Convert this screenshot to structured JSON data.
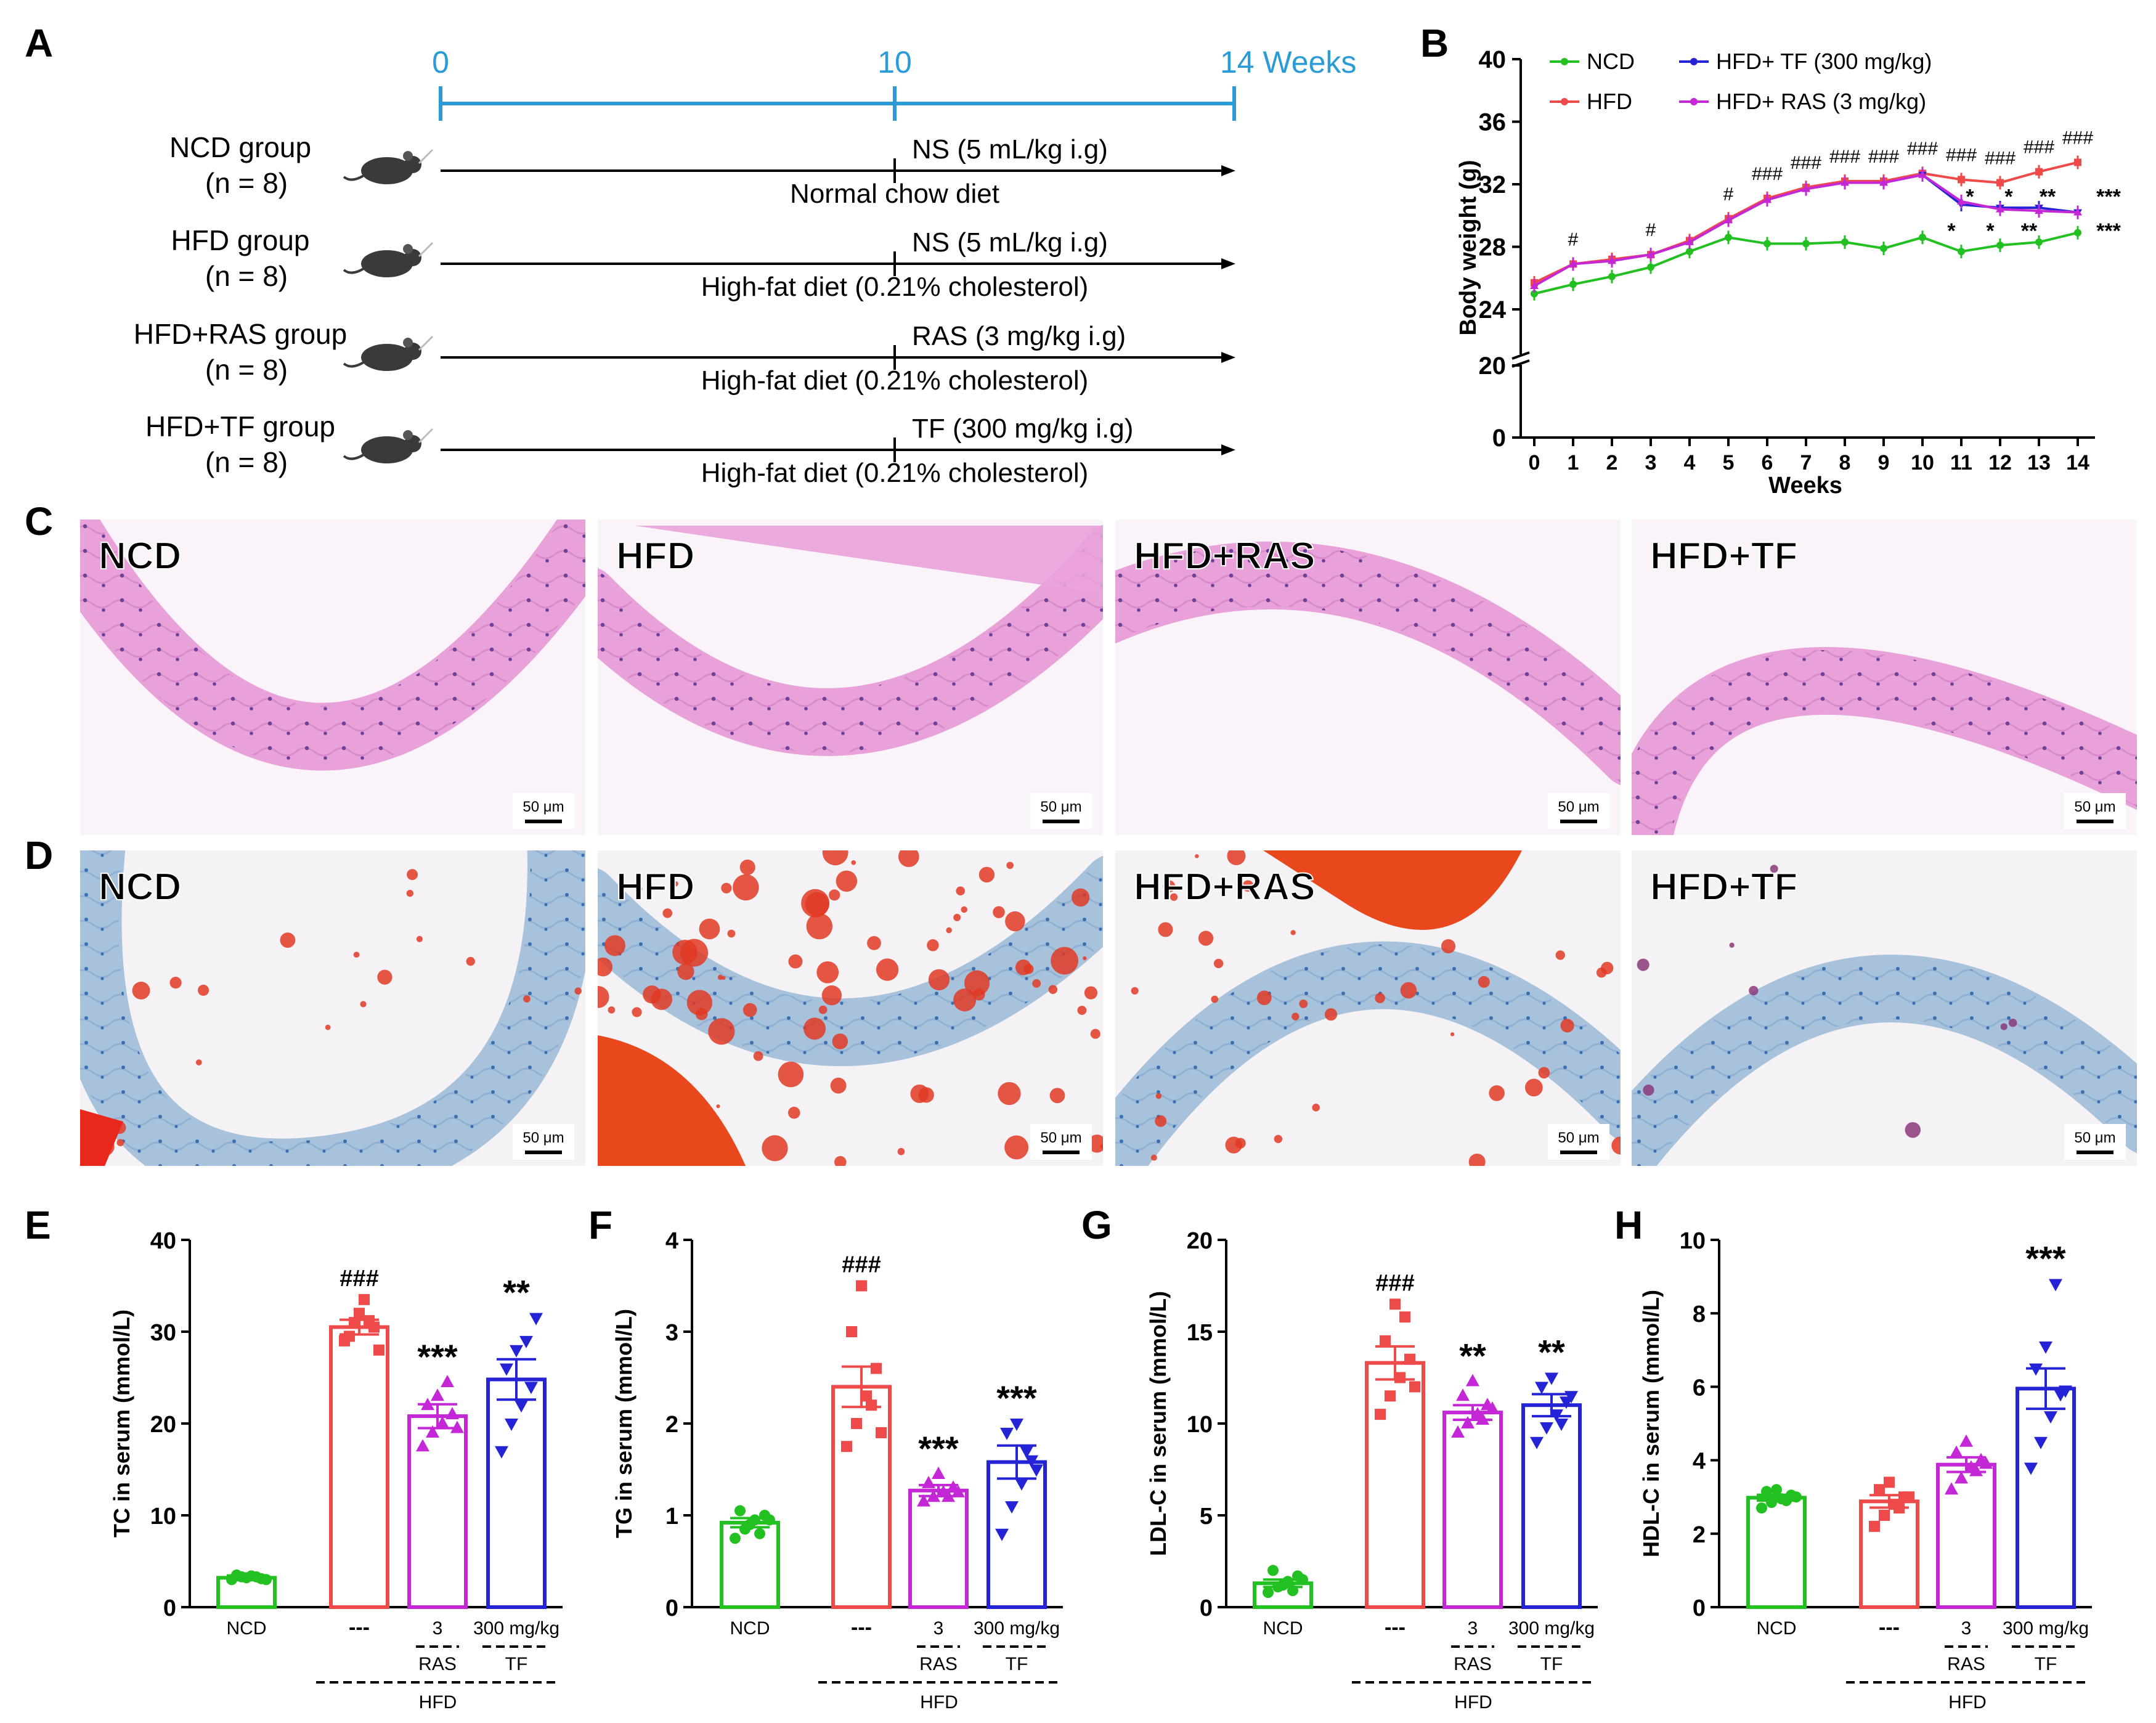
{
  "panels": {
    "A": "A",
    "B": "B",
    "C": "C",
    "D": "D",
    "E": "E",
    "F": "F",
    "G": "G",
    "H": "H"
  },
  "timeline": {
    "ticks": [
      "0",
      "10",
      "14 Weeks"
    ],
    "groups": [
      {
        "name": "NCD group",
        "n": "(n = 8)",
        "above": "NS (5 mL/kg i.g)",
        "below": "Normal chow diet"
      },
      {
        "name": "HFD group",
        "n": "(n = 8)",
        "above": "NS (5 mL/kg i.g)",
        "below": "High-fat diet (0.21% cholesterol)"
      },
      {
        "name": "HFD+RAS group",
        "n": "(n = 8)",
        "above": "RAS (3 mg/kg i.g)",
        "below": "High-fat diet (0.21% cholesterol)"
      },
      {
        "name": "HFD+TF group",
        "n": "(n = 8)",
        "above": "TF (300 mg/kg i.g)",
        "below": "High-fat diet (0.21% cholesterol)"
      }
    ],
    "colors": {
      "axis": "#2a9bd6"
    }
  },
  "histology": {
    "labels": [
      "NCD",
      "HFD",
      "HFD+RAS",
      "HFD+TF"
    ],
    "scale": "50 μm",
    "he_colors": {
      "bg": "#fbf3fa",
      "wall": "#e9a2d9",
      "nuclei": "#6a3f9a"
    },
    "oro_colors": {
      "bg": "#f4f2f4",
      "wall": "#a8c2dc",
      "nuclei": "#3a6fb0",
      "lipid": "#e03a24"
    }
  },
  "chart_data": [
    {
      "type": "line",
      "title": "",
      "xlabel": "Weeks",
      "ylabel": "Body weight (g)",
      "x": [
        0,
        1,
        2,
        3,
        4,
        5,
        6,
        7,
        8,
        9,
        10,
        11,
        12,
        13,
        14
      ],
      "yticks": [
        "0",
        "20",
        "24",
        "28",
        "32",
        "36",
        "40"
      ],
      "ylim": [
        0,
        40
      ],
      "axis_break": [
        20,
        22
      ],
      "series": [
        {
          "name": "NCD",
          "color": "#22c020",
          "x": [
            0,
            1,
            2,
            3,
            4,
            5,
            6,
            7,
            8,
            9,
            10,
            11,
            12,
            13,
            14
          ],
          "values": [
            25.0,
            25.6,
            26.1,
            26.7,
            27.7,
            28.6,
            28.2,
            28.2,
            28.3,
            27.9,
            28.6,
            27.7,
            28.1,
            28.3,
            28.9
          ]
        },
        {
          "name": "HFD",
          "color": "#ef4a4a",
          "x": [
            0,
            1,
            2,
            3,
            4,
            5,
            6,
            7,
            8,
            9,
            10,
            11,
            12,
            13,
            14
          ],
          "values": [
            25.7,
            26.9,
            27.2,
            27.5,
            28.4,
            29.8,
            31.1,
            31.8,
            32.2,
            32.2,
            32.7,
            32.3,
            32.1,
            32.8,
            33.4
          ]
        },
        {
          "name": "HFD+ TF (300 mg/kg)",
          "color": "#2424d6",
          "x": [
            10,
            11,
            12,
            13,
            14
          ],
          "values": [
            32.6,
            30.7,
            30.5,
            30.5,
            30.2
          ]
        },
        {
          "name": "HFD+ RAS (3 mg/kg)",
          "color": "#c428d6",
          "x": [
            0,
            1,
            2,
            3,
            4,
            5,
            6,
            7,
            8,
            9,
            10,
            11,
            12,
            13,
            14
          ],
          "values": [
            25.5,
            26.9,
            27.1,
            27.5,
            28.3,
            29.7,
            31.0,
            31.7,
            32.1,
            32.1,
            32.6,
            30.9,
            30.4,
            30.3,
            30.2
          ]
        }
      ],
      "annotations": {
        "hash": [
          {
            "x": 1,
            "text": "#"
          },
          {
            "x": 3,
            "text": "#"
          },
          {
            "x": 5,
            "text": "#"
          },
          {
            "x": 6,
            "text": "###"
          },
          {
            "x": 7,
            "text": "###"
          },
          {
            "x": 8,
            "text": "###"
          },
          {
            "x": 9,
            "text": "###"
          },
          {
            "x": 10,
            "text": "###"
          },
          {
            "x": 11,
            "text": "###"
          },
          {
            "x": 12,
            "text": "###"
          },
          {
            "x": 13,
            "text": "###"
          },
          {
            "x": 14,
            "text": "###"
          }
        ],
        "star_upper": [
          {
            "x": 11,
            "text": "*"
          },
          {
            "x": 12,
            "text": "*"
          },
          {
            "x": 13,
            "text": "**"
          },
          {
            "x": 14,
            "text": "***"
          }
        ],
        "star_lower": [
          {
            "x": 11,
            "text": "*"
          },
          {
            "x": 12,
            "text": "*"
          },
          {
            "x": 13,
            "text": "**"
          },
          {
            "x": 14,
            "text": "***"
          }
        ]
      }
    },
    {
      "type": "bar",
      "panel": "E",
      "ylabel": "TC in serum (mmol/L)",
      "ylim": [
        0,
        40
      ],
      "yticks": [
        "0",
        "10",
        "20",
        "30",
        "40"
      ],
      "categories": [
        "NCD",
        "---",
        "3",
        "300 mg/kg"
      ],
      "colors": [
        "#22c020",
        "#ef4a4a",
        "#c428d6",
        "#2424d6"
      ],
      "markers": [
        "circle",
        "square",
        "triangle",
        "invtriangle"
      ],
      "values": [
        3.2,
        30.5,
        20.8,
        24.8
      ],
      "sem": [
        0.25,
        0.8,
        1.3,
        2.2
      ],
      "points": [
        [
          3.0,
          3.3,
          3.4,
          3.1,
          3.5,
          3.2,
          3.3,
          3.0
        ],
        [
          29.0,
          31.0,
          33.5,
          30.5,
          29.5,
          32.0,
          31.2,
          28.0
        ],
        [
          17.5,
          19.0,
          20.0,
          21.0,
          22.0,
          23.0,
          24.5,
          19.5
        ],
        [
          17.0,
          20.0,
          22.0,
          24.0,
          26.0,
          28.0,
          29.0,
          31.5
        ]
      ],
      "sig": [
        "",
        "###",
        "***",
        "**"
      ],
      "group_labels": [
        "RAS",
        "TF",
        "HFD"
      ]
    },
    {
      "type": "bar",
      "panel": "F",
      "ylabel": "TG in serum (mmol/L)",
      "ylim": [
        0,
        4
      ],
      "yticks": [
        "0",
        "1",
        "2",
        "3",
        "4"
      ],
      "categories": [
        "NCD",
        "---",
        "3",
        "300 mg/kg"
      ],
      "colors": [
        "#22c020",
        "#ef4a4a",
        "#c428d6",
        "#2424d6"
      ],
      "markers": [
        "circle",
        "square",
        "triangle",
        "invtriangle"
      ],
      "values": [
        0.92,
        2.4,
        1.27,
        1.58
      ],
      "sem": [
        0.05,
        0.22,
        0.06,
        0.18
      ],
      "points": [
        [
          0.75,
          0.85,
          0.95,
          1.0,
          1.05,
          0.9,
          0.8,
          0.95
        ],
        [
          1.75,
          2.0,
          2.3,
          2.6,
          3.0,
          3.5,
          2.2,
          1.9
        ],
        [
          1.15,
          1.2,
          1.25,
          1.3,
          1.35,
          1.45,
          1.2,
          1.25
        ],
        [
          0.8,
          1.1,
          1.35,
          1.6,
          1.9,
          2.0,
          1.7,
          1.5
        ]
      ],
      "sig": [
        "",
        "###",
        "***",
        "***"
      ],
      "group_labels": [
        "RAS",
        "TF",
        "HFD"
      ]
    },
    {
      "type": "bar",
      "panel": "G",
      "ylabel": "LDL-C in serum (mmol/L)",
      "ylim": [
        0,
        20
      ],
      "yticks": [
        "0",
        "5",
        "10",
        "15",
        "20"
      ],
      "categories": [
        "NCD",
        "---",
        "3",
        "300 mg/kg"
      ],
      "colors": [
        "#22c020",
        "#ef4a4a",
        "#c428d6",
        "#2424d6"
      ],
      "markers": [
        "circle",
        "square",
        "triangle",
        "invtriangle"
      ],
      "values": [
        1.3,
        13.3,
        10.6,
        11.0
      ],
      "sem": [
        0.2,
        0.9,
        0.4,
        0.6
      ],
      "points": [
        [
          0.8,
          1.1,
          1.4,
          1.7,
          2.0,
          1.2,
          0.9,
          1.5
        ],
        [
          10.5,
          11.5,
          12.5,
          13.5,
          14.5,
          16.5,
          15.8,
          12.0
        ],
        [
          9.5,
          10.0,
          10.5,
          11.0,
          11.5,
          12.3,
          10.2,
          10.8
        ],
        [
          9.0,
          9.8,
          10.5,
          11.2,
          12.0,
          12.5,
          10.0,
          11.5
        ]
      ],
      "sig": [
        "",
        "###",
        "**",
        "**"
      ],
      "group_labels": [
        "RAS",
        "TF",
        "HFD"
      ]
    },
    {
      "type": "bar",
      "panel": "H",
      "ylabel": "HDL-C in serum (mmol/L)",
      "ylim": [
        0,
        10
      ],
      "yticks": [
        "0",
        "2",
        "4",
        "6",
        "8",
        "10"
      ],
      "categories": [
        "NCD",
        "---",
        "3",
        "300 mg/kg"
      ],
      "colors": [
        "#22c020",
        "#ef4a4a",
        "#c428d6",
        "#2424d6"
      ],
      "markers": [
        "circle",
        "square",
        "triangle",
        "invtriangle"
      ],
      "values": [
        2.98,
        2.88,
        3.88,
        5.95
      ],
      "sem": [
        0.08,
        0.17,
        0.2,
        0.55
      ],
      "points": [
        [
          2.7,
          2.85,
          2.95,
          3.05,
          3.15,
          3.2,
          2.9,
          3.0
        ],
        [
          2.2,
          2.5,
          2.8,
          3.0,
          3.2,
          3.4,
          2.7,
          3.0
        ],
        [
          3.2,
          3.5,
          3.8,
          4.0,
          4.2,
          4.5,
          3.7,
          3.9
        ],
        [
          3.8,
          4.5,
          5.2,
          5.8,
          6.5,
          7.1,
          8.8,
          5.9
        ]
      ],
      "sig": [
        "",
        "",
        "",
        "***"
      ],
      "group_labels": [
        "RAS",
        "TF",
        "HFD"
      ]
    }
  ]
}
